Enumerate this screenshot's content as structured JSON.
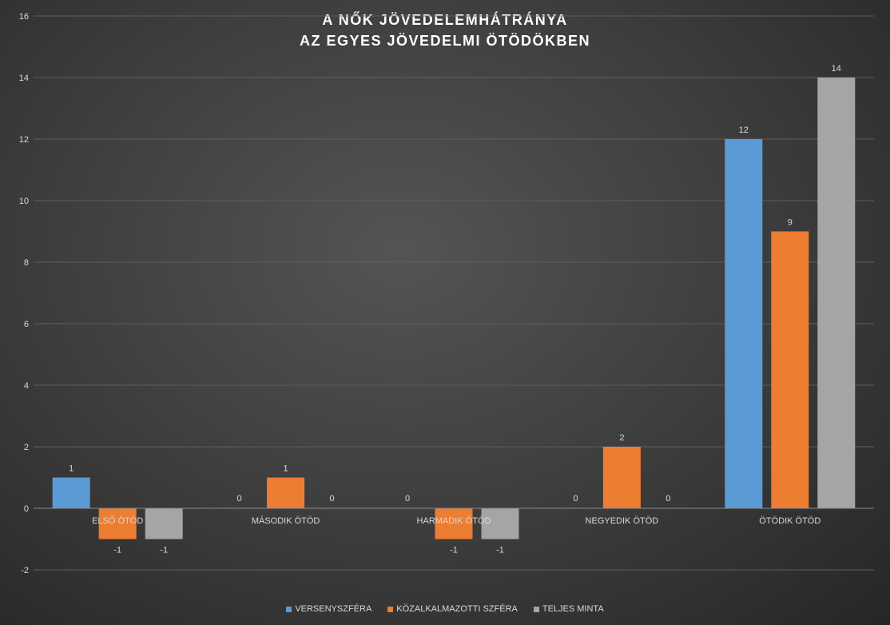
{
  "chart_data": {
    "type": "bar",
    "title_lines": [
      "A NŐK JÖVEDELEMHÁTRÁNYA",
      "AZ EGYES JÖVEDELMI ÖTÖDÖKBEN"
    ],
    "categories": [
      "ELSŐ ÖTÖD",
      "MÁSODIK ÖTÖD",
      "HARMADIK ÖTÖD",
      "NEGYEDIK ÖTÖD",
      "ÖTÖDIK ÖTÖD"
    ],
    "series": [
      {
        "name": "VERSENYSZFÉRA",
        "values": [
          1,
          0,
          0,
          0,
          12
        ],
        "color": "#5b9bd5"
      },
      {
        "name": "KÖZALKALMAZOTTI SZFÉRA",
        "values": [
          -1,
          1,
          -1,
          2,
          9
        ],
        "color": "#ed7d31"
      },
      {
        "name": "TELJES MINTA",
        "values": [
          -1,
          0,
          -1,
          0,
          14
        ],
        "color": "#a5a5a5"
      }
    ],
    "ylim": [
      -2,
      16
    ],
    "yticks": [
      -2,
      0,
      2,
      4,
      6,
      8,
      10,
      12,
      14,
      16
    ],
    "grid": true,
    "legend_position": "bottom"
  }
}
